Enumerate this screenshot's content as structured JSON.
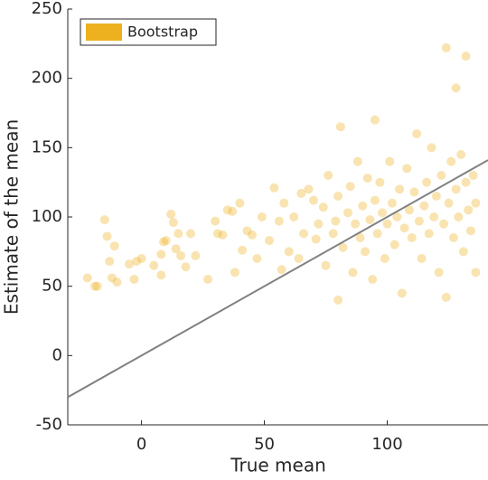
{
  "chart_data": {
    "type": "scatter",
    "xlabel": "True mean",
    "ylabel": "Estimate of the mean",
    "xlim": [
      -30,
      141
    ],
    "ylim": [
      -50,
      250
    ],
    "xticks": [
      0,
      50,
      100
    ],
    "yticks": [
      -50,
      0,
      50,
      100,
      150,
      200,
      250
    ],
    "legend": "northwest",
    "series": [
      {
        "name": "Bootstrap",
        "color": "#EDB120",
        "x": [
          -22,
          -19,
          -18,
          -15,
          -14,
          -13,
          -12,
          -11,
          -10,
          -5,
          -3,
          -2,
          0,
          5,
          8,
          8,
          9,
          10,
          12,
          13,
          14,
          15,
          16,
          18,
          20,
          22,
          27,
          30,
          31,
          33,
          35,
          37,
          38,
          40,
          41,
          43,
          45,
          47,
          49,
          52,
          54,
          56,
          57,
          58,
          60,
          62,
          64,
          65,
          66,
          68,
          70,
          71,
          72,
          74,
          75,
          76,
          78,
          79,
          80,
          80,
          81,
          82,
          84,
          85,
          86,
          87,
          88,
          89,
          90,
          91,
          92,
          93,
          94,
          95,
          95,
          96,
          97,
          98,
          99,
          100,
          101,
          102,
          103,
          104,
          105,
          106,
          107,
          108,
          109,
          110,
          111,
          112,
          113,
          114,
          115,
          116,
          117,
          118,
          119,
          120,
          121,
          122,
          123,
          124,
          124,
          125,
          126,
          127,
          128,
          128,
          129,
          130,
          131,
          132,
          132,
          133,
          134,
          135,
          136,
          136
        ],
        "y": [
          56,
          50,
          50,
          98,
          86,
          68,
          56,
          79,
          53,
          66,
          55,
          68,
          70,
          65,
          58,
          73,
          82,
          83,
          102,
          96,
          77,
          88,
          72,
          64,
          88,
          72,
          55,
          97,
          88,
          87,
          105,
          104,
          60,
          110,
          76,
          90,
          87,
          70,
          100,
          83,
          121,
          97,
          62,
          110,
          75,
          100,
          70,
          117,
          88,
          120,
          112,
          84,
          95,
          107,
          65,
          130,
          88,
          97,
          40,
          115,
          165,
          78,
          103,
          122,
          60,
          95,
          140,
          85,
          108,
          75,
          128,
          98,
          55,
          112,
          170,
          88,
          125,
          103,
          70,
          95,
          140,
          110,
          80,
          100,
          120,
          45,
          92,
          135,
          105,
          85,
          118,
          160,
          97,
          70,
          108,
          125,
          88,
          150,
          100,
          115,
          60,
          130,
          95,
          222,
          42,
          110,
          140,
          85,
          193,
          120,
          100,
          145,
          75,
          216,
          125,
          105,
          90,
          130,
          60,
          110
        ]
      }
    ],
    "reference_line": {
      "x": [
        -30,
        141
      ],
      "y": [
        -30,
        141
      ],
      "color": "#808080"
    }
  }
}
